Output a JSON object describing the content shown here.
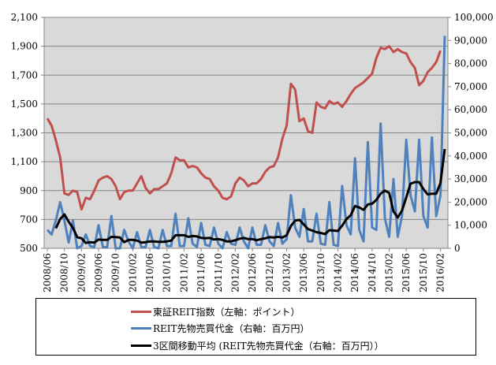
{
  "chart_data": {
    "type": "line",
    "title": "",
    "x": [
      "2008/06",
      "2008/07",
      "2008/08",
      "2008/09",
      "2008/10",
      "2008/11",
      "2008/12",
      "2009/01",
      "2009/02",
      "2009/03",
      "2009/04",
      "2009/05",
      "2009/06",
      "2009/07",
      "2009/08",
      "2009/09",
      "2009/10",
      "2009/11",
      "2009/12",
      "2010/01",
      "2010/02",
      "2010/03",
      "2010/04",
      "2010/05",
      "2010/06",
      "2010/07",
      "2010/08",
      "2010/09",
      "2010/10",
      "2010/11",
      "2010/12",
      "2011/01",
      "2011/02",
      "2011/03",
      "2011/04",
      "2011/05",
      "2011/06",
      "2011/07",
      "2011/08",
      "2011/09",
      "2011/10",
      "2011/11",
      "2011/12",
      "2012/01",
      "2012/02",
      "2012/03",
      "2012/04",
      "2012/05",
      "2012/06",
      "2012/07",
      "2012/08",
      "2012/09",
      "2012/10",
      "2012/11",
      "2012/12",
      "2013/01",
      "2013/02",
      "2013/03",
      "2013/04",
      "2013/05",
      "2013/06",
      "2013/07",
      "2013/08",
      "2013/09",
      "2013/10",
      "2013/11",
      "2013/12",
      "2014/01",
      "2014/02",
      "2014/03",
      "2014/04",
      "2014/05",
      "2014/06",
      "2014/07",
      "2014/08",
      "2014/09",
      "2014/10",
      "2014/11",
      "2014/12",
      "2015/01",
      "2015/02",
      "2015/03",
      "2015/04",
      "2015/05",
      "2015/06",
      "2015/07",
      "2015/08",
      "2015/09",
      "2015/10",
      "2015/11",
      "2015/12",
      "2016/01",
      "2016/02",
      "2016/03"
    ],
    "x_tick_labels": [
      "2008/06",
      "2008/10",
      "2009/02",
      "2009/06",
      "2009/10",
      "2010/02",
      "2010/06",
      "2010/10",
      "2011/02",
      "2011/06",
      "2011/10",
      "2012/02",
      "2012/06",
      "2012/10",
      "2013/02",
      "2013/06",
      "2013/10",
      "2014/02",
      "2014/06",
      "2014/10",
      "2015/02",
      "2015/06",
      "2015/10",
      "2016/02"
    ],
    "y_left": {
      "ylim": [
        500,
        2100
      ],
      "ticks": [
        "500",
        "700",
        "900",
        "1,100",
        "1,300",
        "1,500",
        "1,700",
        "1,900",
        "2,100"
      ]
    },
    "y_right": {
      "ylim": [
        0,
        100000
      ],
      "ticks": [
        "0",
        "10,000",
        "20,000",
        "30,000",
        "40,000",
        "50,000",
        "60,000",
        "70,000",
        "80,000",
        "90,000",
        "100,000"
      ]
    },
    "grid": true,
    "legend_position": "bottom",
    "series": [
      {
        "name": "東証REIT指数（左軸：ポイント）",
        "axis": "left",
        "color": "#c0504d",
        "values": [
          1400,
          1350,
          1250,
          1130,
          880,
          870,
          900,
          890,
          770,
          850,
          840,
          900,
          970,
          990,
          1000,
          980,
          930,
          840,
          890,
          900,
          900,
          950,
          1000,
          920,
          880,
          910,
          910,
          930,
          950,
          1020,
          1130,
          1110,
          1110,
          1060,
          1070,
          1060,
          1020,
          990,
          980,
          930,
          900,
          850,
          840,
          860,
          950,
          990,
          970,
          930,
          950,
          950,
          980,
          1030,
          1060,
          1070,
          1130,
          1260,
          1350,
          1640,
          1600,
          1380,
          1400,
          1310,
          1300,
          1510,
          1480,
          1470,
          1520,
          1500,
          1510,
          1480,
          1520,
          1570,
          1610,
          1630,
          1650,
          1680,
          1710,
          1820,
          1890,
          1880,
          1900,
          1860,
          1880,
          1860,
          1850,
          1790,
          1750,
          1630,
          1660,
          1720,
          1750,
          1790,
          1870,
          null
        ]
      },
      {
        "name": "REIT先物売買代金（右軸：百万円）",
        "axis": "right",
        "color": "#4f81bd",
        "values": [
          8000,
          6000,
          12000,
          20000,
          12000,
          2500,
          12000,
          0,
          1000,
          6000,
          1000,
          500,
          10000,
          500,
          500,
          14000,
          0,
          0,
          8000,
          3000,
          0,
          7000,
          500,
          500,
          8000,
          500,
          0,
          8000,
          1000,
          1000,
          15000,
          1000,
          1000,
          13000,
          2000,
          500,
          11000,
          1500,
          1000,
          9000,
          2000,
          0,
          7000,
          2000,
          1500,
          9000,
          3000,
          0,
          9000,
          1500,
          1500,
          10000,
          3000,
          1000,
          11000,
          2000,
          4000,
          23000,
          9000,
          5000,
          17000,
          3000,
          3000,
          15000,
          2000,
          1500,
          20000,
          1500,
          1000,
          27000,
          10000,
          6000,
          39000,
          8000,
          3000,
          46000,
          9000,
          8000,
          54000,
          13000,
          5000,
          30000,
          5000,
          14000,
          47000,
          23000,
          16000,
          47000,
          14000,
          9000,
          48000,
          14000,
          23000,
          92000
        ]
      },
      {
        "name": "3区間移動平均 (REIT先物売買代金（右軸：百万円））",
        "axis": "right",
        "color": "#000000",
        "moving_average_of": 1,
        "window": 3
      }
    ]
  }
}
